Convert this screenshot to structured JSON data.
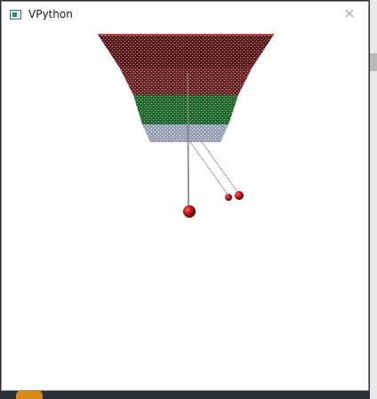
{
  "window": {
    "title": "VPython",
    "close_glyph": "✕"
  },
  "scene": {
    "background": "#ffffff",
    "funnel_colors": {
      "top": "#5e1a1a",
      "upper": "#6e2424",
      "middle": "#1e6a2a",
      "bottom": "#9aa2b8"
    },
    "ball_color": "#c01818",
    "string_color": "#777777"
  }
}
